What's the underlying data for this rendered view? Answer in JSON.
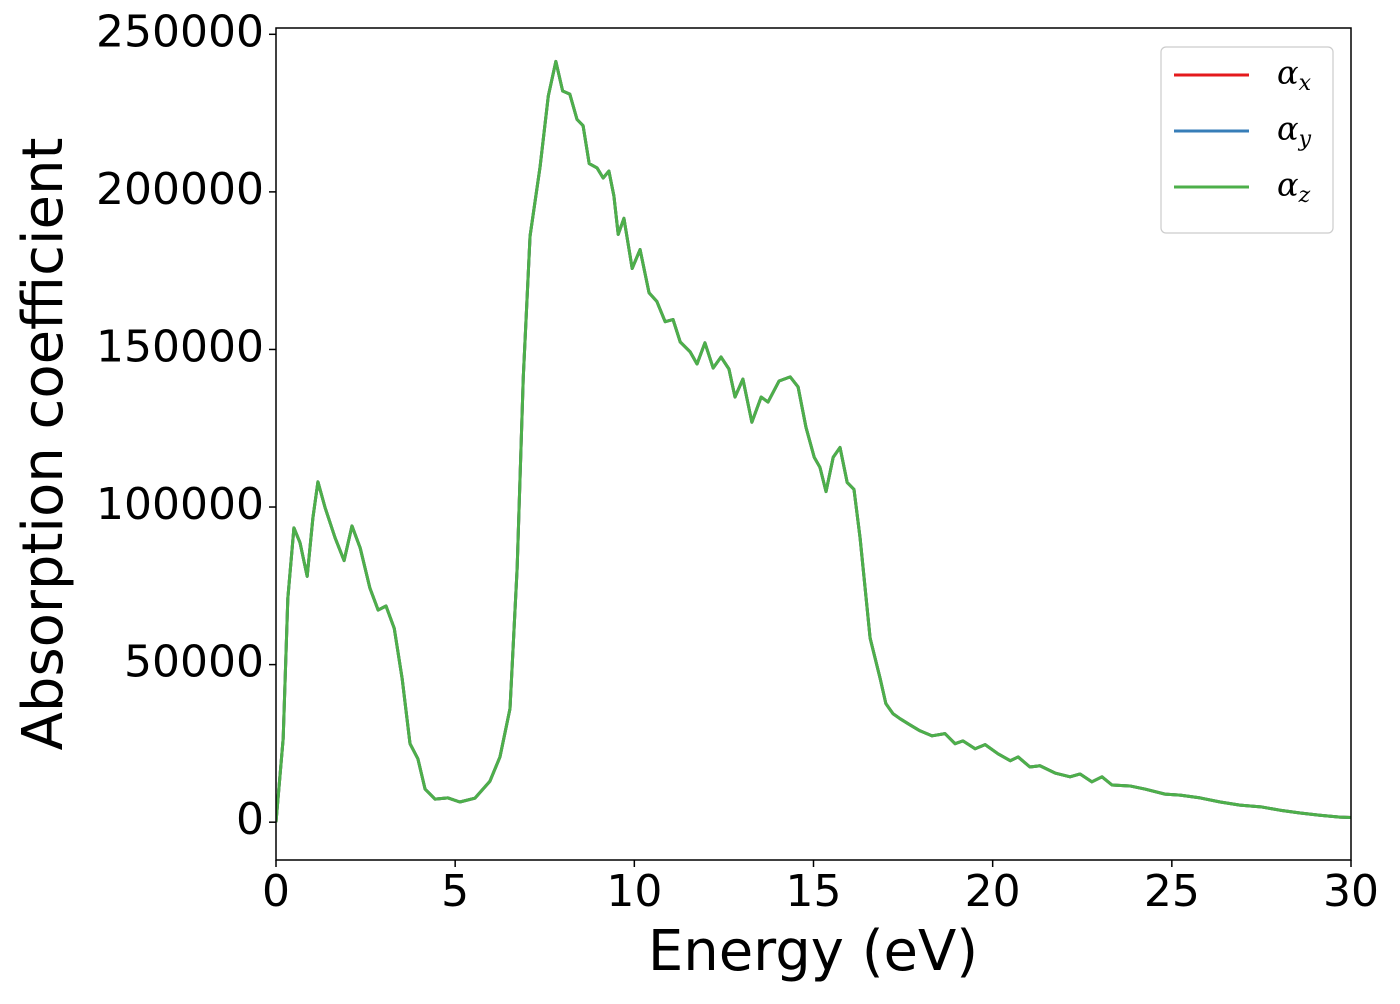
{
  "chart_data": {
    "type": "line",
    "xlabel": "Energy (eV)",
    "ylabel": "Absorption coefficient",
    "x": [
      0,
      0.2,
      0.33,
      0.5,
      0.67,
      0.87,
      1.03,
      1.17,
      1.37,
      1.65,
      1.9,
      2.12,
      2.35,
      2.62,
      2.85,
      3.07,
      3.3,
      3.52,
      3.74,
      3.96,
      4.16,
      4.44,
      4.8,
      5.13,
      5.55,
      5.97,
      6.25,
      6.53,
      6.73,
      6.9,
      7.09,
      7.37,
      7.6,
      7.81,
      8.0,
      8.2,
      8.4,
      8.57,
      8.74,
      8.96,
      9.13,
      9.29,
      9.43,
      9.55,
      9.71,
      9.94,
      10.16,
      10.41,
      10.63,
      10.86,
      11.08,
      11.28,
      11.56,
      11.75,
      11.97,
      12.2,
      12.42,
      12.64,
      12.81,
      13.03,
      13.28,
      13.54,
      13.73,
      14.04,
      14.35,
      14.57,
      14.79,
      15.02,
      15.18,
      15.35,
      15.55,
      15.74,
      15.94,
      16.13,
      16.3,
      16.58,
      16.86,
      17.02,
      17.22,
      17.42,
      17.69,
      17.97,
      18.31,
      18.67,
      18.95,
      19.17,
      19.51,
      19.79,
      20.15,
      20.49,
      20.71,
      21.04,
      21.32,
      21.74,
      22.16,
      22.44,
      22.77,
      23.05,
      23.33,
      23.83,
      24.25,
      24.81,
      25.23,
      25.79,
      26.35,
      26.9,
      27.52,
      28.02,
      28.58,
      29.13,
      29.69,
      30.0
    ],
    "series": [
      {
        "name": "αx",
        "color": "#e41a1c",
        "values": [
          0,
          26500,
          71000,
          93400,
          88700,
          78000,
          96600,
          108000,
          99800,
          90200,
          83000,
          94000,
          87000,
          74300,
          67300,
          68600,
          61500,
          45600,
          24900,
          20100,
          10500,
          7300,
          7700,
          6400,
          7600,
          13000,
          20700,
          36000,
          80700,
          141000,
          186000,
          208000,
          230500,
          241400,
          232000,
          231000,
          223000,
          221000,
          209000,
          207600,
          204400,
          206600,
          198700,
          186500,
          191600,
          175700,
          181700,
          168000,
          165200,
          158800,
          159500,
          152400,
          149200,
          145400,
          152100,
          144100,
          147600,
          143800,
          134900,
          140600,
          126900,
          134900,
          133300,
          140000,
          141300,
          138100,
          125300,
          115800,
          112600,
          104900,
          115800,
          118900,
          107800,
          105600,
          90200,
          58400,
          45600,
          37600,
          34400,
          32800,
          30900,
          29000,
          27400,
          28100,
          24900,
          25800,
          23300,
          24600,
          21700,
          19500,
          20700,
          17500,
          17900,
          15600,
          14400,
          15300,
          12800,
          14400,
          11800,
          11500,
          10500,
          8900,
          8600,
          7700,
          6400,
          5400,
          4800,
          3800,
          2900,
          2200,
          1600,
          1500
        ]
      },
      {
        "name": "αy",
        "color": "#377eb8",
        "values": [
          0,
          26500,
          71000,
          93400,
          88700,
          78000,
          96600,
          108000,
          99800,
          90200,
          83000,
          94000,
          87000,
          74300,
          67300,
          68600,
          61500,
          45600,
          24900,
          20100,
          10500,
          7300,
          7700,
          6400,
          7600,
          13000,
          20700,
          36000,
          80700,
          141000,
          186000,
          208000,
          230500,
          241400,
          232000,
          231000,
          223000,
          221000,
          209000,
          207600,
          204400,
          206600,
          198700,
          186500,
          191600,
          175700,
          181700,
          168000,
          165200,
          158800,
          159500,
          152400,
          149200,
          145400,
          152100,
          144100,
          147600,
          143800,
          134900,
          140600,
          126900,
          134900,
          133300,
          140000,
          141300,
          138100,
          125300,
          115800,
          112600,
          104900,
          115800,
          118900,
          107800,
          105600,
          90200,
          58400,
          45600,
          37600,
          34400,
          32800,
          30900,
          29000,
          27400,
          28100,
          24900,
          25800,
          23300,
          24600,
          21700,
          19500,
          20700,
          17500,
          17900,
          15600,
          14400,
          15300,
          12800,
          14400,
          11800,
          11500,
          10500,
          8900,
          8600,
          7700,
          6400,
          5400,
          4800,
          3800,
          2900,
          2200,
          1600,
          1500
        ]
      },
      {
        "name": "αz",
        "color": "#4daf4a",
        "values": [
          0,
          26500,
          71000,
          93400,
          88700,
          78000,
          96600,
          108000,
          99800,
          90200,
          83000,
          94000,
          87000,
          74300,
          67300,
          68600,
          61500,
          45600,
          24900,
          20100,
          10500,
          7300,
          7700,
          6400,
          7600,
          13000,
          20700,
          36000,
          80700,
          141000,
          186000,
          208000,
          230500,
          241400,
          232000,
          231000,
          223000,
          221000,
          209000,
          207600,
          204400,
          206600,
          198700,
          186500,
          191600,
          175700,
          181700,
          168000,
          165200,
          158800,
          159500,
          152400,
          149200,
          145400,
          152100,
          144100,
          147600,
          143800,
          134900,
          140600,
          126900,
          134900,
          133300,
          140000,
          141300,
          138100,
          125300,
          115800,
          112600,
          104900,
          115800,
          118900,
          107800,
          105600,
          90200,
          58400,
          45600,
          37600,
          34400,
          32800,
          30900,
          29000,
          27400,
          28100,
          24900,
          25800,
          23300,
          24600,
          21700,
          19500,
          20700,
          17500,
          17900,
          15600,
          14400,
          15300,
          12800,
          14400,
          11800,
          11500,
          10500,
          8900,
          8600,
          7700,
          6400,
          5400,
          4800,
          3800,
          2900,
          2200,
          1600,
          1500
        ]
      }
    ],
    "xlim": [
      0,
      30
    ],
    "xticks": [
      0,
      5,
      10,
      15,
      20,
      25,
      30
    ],
    "ylim": [
      -12000,
      252000
    ],
    "yticks": [
      0,
      50000,
      100000,
      150000,
      200000,
      250000
    ],
    "grid": false,
    "legend": "upper right"
  }
}
